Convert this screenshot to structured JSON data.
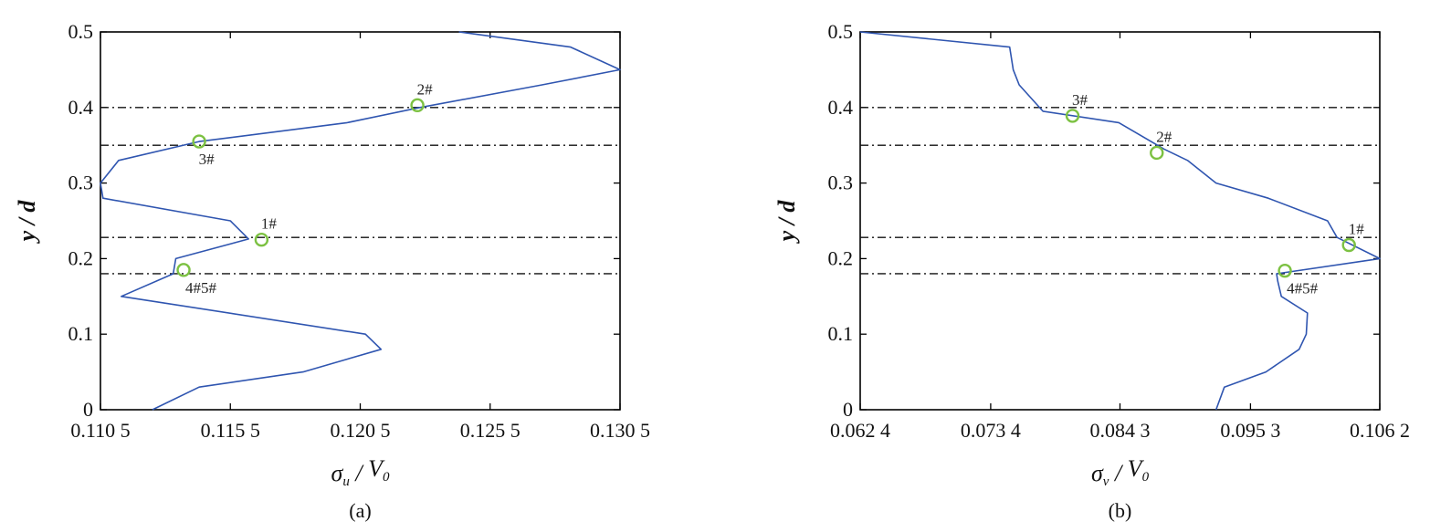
{
  "chart_data": [
    {
      "type": "line",
      "panel_label": "(a)",
      "xlabel": {
        "sigma": "σ",
        "sub": "u",
        "sep": " / ",
        "V": "V",
        "vsub": "0"
      },
      "ylabel": "y / d",
      "xlim": [
        0.1105,
        0.1305
      ],
      "ylim": [
        0,
        0.5
      ],
      "xticks": [
        0.1105,
        0.1155,
        0.1205,
        0.1255,
        0.1305
      ],
      "xtick_labels": [
        "0.110 5",
        "0.115 5",
        "0.120 5",
        "0.125 5",
        "0.130 5"
      ],
      "yticks": [
        0,
        0.1,
        0.2,
        0.3,
        0.4,
        0.5
      ],
      "ytick_labels": [
        "0",
        "0.1",
        "0.2",
        "0.3",
        "0.4",
        "0.5"
      ],
      "line_color": "#2f55b0",
      "marker_color": "#7cc142",
      "series": [
        {
          "x": [
            0.1125,
            0.1143,
            0.1183,
            0.1213,
            0.1207,
            0.1113,
            0.1133,
            0.1134,
            0.1162,
            0.1155,
            0.1106,
            0.1105,
            0.1112,
            0.1143,
            0.12,
            0.1228,
            0.1275,
            0.1305,
            0.1286,
            0.1243
          ],
          "y": [
            0,
            0.03,
            0.05,
            0.08,
            0.1,
            0.15,
            0.18,
            0.2,
            0.226,
            0.25,
            0.28,
            0.3,
            0.33,
            0.355,
            0.38,
            0.4,
            0.43,
            0.45,
            0.48,
            0.5
          ]
        }
      ],
      "ref_lines_y": [
        0.18,
        0.228,
        0.35,
        0.4
      ],
      "points": [
        {
          "label": "1#",
          "x": 0.1167,
          "y": 0.225,
          "label_pos": "above"
        },
        {
          "label": "2#",
          "x": 0.1227,
          "y": 0.403,
          "label_pos": "above"
        },
        {
          "label": "3#",
          "x": 0.1143,
          "y": 0.355,
          "label_pos": "below"
        },
        {
          "label": "4#5#",
          "x": 0.1137,
          "y": 0.185,
          "label_pos": "below"
        }
      ]
    },
    {
      "type": "line",
      "panel_label": "(b)",
      "xlabel": {
        "sigma": "σ",
        "sub": "v",
        "sep": " / ",
        "V": "V",
        "vsub": "0"
      },
      "ylabel": "y / d",
      "xlim": [
        0.0624,
        0.1062
      ],
      "ylim": [
        0,
        0.5
      ],
      "xticks": [
        0.0624,
        0.0734,
        0.0843,
        0.0953,
        0.1062
      ],
      "xtick_labels": [
        "0.062 4",
        "0.073 4",
        "0.084 3",
        "0.095 3",
        "0.106 2"
      ],
      "yticks": [
        0,
        0.1,
        0.2,
        0.3,
        0.4,
        0.5
      ],
      "ytick_labels": [
        "0",
        "0.1",
        "0.2",
        "0.3",
        "0.4",
        "0.5"
      ],
      "line_color": "#2f55b0",
      "marker_color": "#7cc142",
      "series": [
        {
          "x": [
            0.0924,
            0.0931,
            0.0966,
            0.0994,
            0.1,
            0.1001,
            0.0979,
            0.0976,
            0.0975,
            0.1062,
            0.1026,
            0.1018,
            0.0968,
            0.0924,
            0.09,
            0.088,
            0.0842,
            0.0778,
            0.0758,
            0.0753,
            0.075,
            0.0624
          ],
          "y": [
            0,
            0.03,
            0.05,
            0.08,
            0.1,
            0.128,
            0.15,
            0.17,
            0.18,
            0.2,
            0.228,
            0.25,
            0.28,
            0.3,
            0.33,
            0.345,
            0.38,
            0.395,
            0.43,
            0.45,
            0.48,
            0.5
          ]
        }
      ],
      "ref_lines_y": [
        0.18,
        0.228,
        0.35,
        0.4
      ],
      "points": [
        {
          "label": "1#",
          "x": 0.1036,
          "y": 0.218,
          "label_pos": "above"
        },
        {
          "label": "2#",
          "x": 0.0874,
          "y": 0.34,
          "label_pos": "above"
        },
        {
          "label": "3#",
          "x": 0.0803,
          "y": 0.389,
          "label_pos": "above"
        },
        {
          "label": "4#5#",
          "x": 0.0982,
          "y": 0.184,
          "label_pos": "below"
        }
      ]
    }
  ]
}
